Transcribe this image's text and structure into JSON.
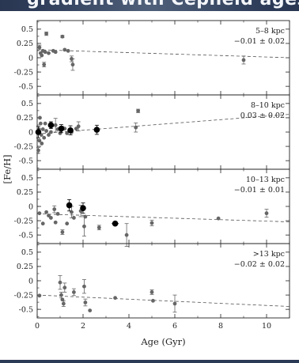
{
  "slide": {
    "title": "gradient with Cepheid ages"
  },
  "chart_data": {
    "type": "scatter",
    "xlabel": "Age (Gyr)",
    "ylabel": "[Fe/H]",
    "xlim": [
      0,
      11
    ],
    "ylim": [
      -0.65,
      0.65
    ],
    "x_ticks": [
      "0",
      "2",
      "4",
      "6",
      "8",
      "10"
    ],
    "y_ticks": [
      "0.5",
      "0.25",
      "0",
      "-0.25",
      "-0.5"
    ],
    "grid": false,
    "panels": [
      {
        "name": "5-8 kpc",
        "label": "5–8 kpc",
        "slope_text": "−0.01 ± 0.02",
        "fit": {
          "x": [
            0,
            11
          ],
          "y": [
            0.14,
            0.0
          ]
        },
        "points": [
          {
            "x": 0.1,
            "y": 0.18,
            "err": 0.04
          },
          {
            "x": 0.15,
            "y": 0.08
          },
          {
            "x": 0.2,
            "y": 0.04
          },
          {
            "x": 0.25,
            "y": 0.12
          },
          {
            "x": 0.3,
            "y": -0.12,
            "err": 0.04
          },
          {
            "x": 0.35,
            "y": 0.1
          },
          {
            "x": 0.4,
            "y": 0.42,
            "err": 0.03
          },
          {
            "x": 0.5,
            "y": 0.08
          },
          {
            "x": 0.7,
            "y": 0.12
          },
          {
            "x": 0.8,
            "y": 0.1
          },
          {
            "x": 1.1,
            "y": 0.37,
            "err": 0.02
          },
          {
            "x": 1.2,
            "y": 0.14
          },
          {
            "x": 1.35,
            "y": 0.12
          },
          {
            "x": 1.5,
            "y": -0.02,
            "err": 0.05
          },
          {
            "x": 1.55,
            "y": -0.12,
            "err": 0.1
          },
          {
            "x": 9.0,
            "y": -0.04,
            "err": 0.07
          }
        ]
      },
      {
        "name": "8-10 kpc",
        "label": "8–10 kpc",
        "slope_text": "0.03 ± 0.02",
        "fit": {
          "x": [
            0,
            11
          ],
          "y": [
            -0.03,
            0.31
          ]
        },
        "points": [
          {
            "x": 0.05,
            "y": -0.32,
            "err": 0.05
          },
          {
            "x": 0.08,
            "y": 0.05
          },
          {
            "x": 0.1,
            "y": -0.15
          },
          {
            "x": 0.12,
            "y": 0.25
          },
          {
            "x": 0.15,
            "y": 0.15
          },
          {
            "x": 0.18,
            "y": -0.05
          },
          {
            "x": 0.2,
            "y": -0.2
          },
          {
            "x": 0.25,
            "y": 0.05
          },
          {
            "x": 0.3,
            "y": -0.1
          },
          {
            "x": 0.35,
            "y": 0.15
          },
          {
            "x": 0.4,
            "y": 0.02
          },
          {
            "x": 0.5,
            "y": -0.05
          },
          {
            "x": 0.6,
            "y": 0.0
          },
          {
            "x": 0.8,
            "y": 0.12,
            "err": 0.12
          },
          {
            "x": 0.9,
            "y": 0.05
          },
          {
            "x": 1.0,
            "y": -0.02
          },
          {
            "x": 1.1,
            "y": 0.08
          },
          {
            "x": 1.2,
            "y": 0.06
          },
          {
            "x": 1.3,
            "y": -0.02
          },
          {
            "x": 1.5,
            "y": 0.0
          },
          {
            "x": 1.7,
            "y": 0.06
          },
          {
            "x": 1.8,
            "y": 0.1,
            "err": 0.08
          },
          {
            "x": 4.3,
            "y": 0.08,
            "err": 0.08
          },
          {
            "x": 4.4,
            "y": 0.37,
            "err": 0.03
          }
        ],
        "highlight_points": [
          {
            "x": 0.05,
            "y": 0.0,
            "err": 0.1
          },
          {
            "x": 0.6,
            "y": 0.12,
            "err": 0.06
          },
          {
            "x": 1.05,
            "y": 0.06,
            "err": 0.07
          },
          {
            "x": 1.45,
            "y": 0.03,
            "err": 0.08
          },
          {
            "x": 2.6,
            "y": 0.04,
            "err": 0.08
          }
        ]
      },
      {
        "name": "10-13 kpc",
        "label": "10–13 kpc",
        "slope_text": "−0.01 ± 0.01",
        "fit": {
          "x": [
            0,
            11
          ],
          "y": [
            -0.13,
            -0.27
          ]
        },
        "points": [
          {
            "x": 0.1,
            "y": -0.12
          },
          {
            "x": 0.25,
            "y": -0.3
          },
          {
            "x": 0.4,
            "y": -0.1
          },
          {
            "x": 0.5,
            "y": -0.16
          },
          {
            "x": 0.6,
            "y": -0.2
          },
          {
            "x": 0.75,
            "y": -0.05,
            "err": 0.06
          },
          {
            "x": 0.8,
            "y": -0.28
          },
          {
            "x": 0.9,
            "y": -0.13
          },
          {
            "x": 1.1,
            "y": -0.45,
            "err": 0.04
          },
          {
            "x": 1.3,
            "y": -0.3
          },
          {
            "x": 1.5,
            "y": -0.1,
            "err": 0.1
          },
          {
            "x": 1.6,
            "y": -0.2
          },
          {
            "x": 1.9,
            "y": -0.08,
            "err": 0.1
          },
          {
            "x": 2.05,
            "y": -0.35,
            "err": 0.17
          },
          {
            "x": 2.1,
            "y": -0.18
          },
          {
            "x": 2.7,
            "y": -0.37,
            "err": 0.04
          },
          {
            "x": 3.9,
            "y": -0.5,
            "err": 0.2
          },
          {
            "x": 5.0,
            "y": -0.29,
            "err": 0.05
          },
          {
            "x": 7.9,
            "y": -0.21
          },
          {
            "x": 10.0,
            "y": -0.12,
            "err": 0.07
          }
        ],
        "highlight_points": [
          {
            "x": 1.4,
            "y": 0.02,
            "err": 0.1
          },
          {
            "x": 2.0,
            "y": -0.03,
            "err": 0.09
          },
          {
            "x": 3.4,
            "y": -0.3,
            "xerr": 0.15
          }
        ]
      },
      {
        "name": ">13 kpc",
        "label": ">13 kpc",
        "slope_text": "−0.02 ± 0.02",
        "fit": {
          "x": [
            0,
            11
          ],
          "y": [
            -0.25,
            -0.45
          ]
        },
        "points": [
          {
            "x": 0.1,
            "y": -0.26
          },
          {
            "x": 1.0,
            "y": -0.03,
            "err": 0.12
          },
          {
            "x": 1.05,
            "y": -0.25,
            "err": 0.05
          },
          {
            "x": 1.1,
            "y": -0.33
          },
          {
            "x": 1.15,
            "y": -0.4,
            "err": 0.05
          },
          {
            "x": 1.2,
            "y": -0.12,
            "err": 0.08
          },
          {
            "x": 1.6,
            "y": -0.2,
            "err": 0.06
          },
          {
            "x": 2.05,
            "y": -0.1,
            "err": 0.12
          },
          {
            "x": 2.1,
            "y": -0.38,
            "err": 0.06
          },
          {
            "x": 2.3,
            "y": -0.52
          },
          {
            "x": 3.4,
            "y": -0.3
          },
          {
            "x": 5.0,
            "y": -0.2,
            "err": 0.04
          },
          {
            "x": 5.05,
            "y": -0.35
          },
          {
            "x": 6.0,
            "y": -0.4,
            "err": 0.15
          }
        ]
      }
    ]
  }
}
